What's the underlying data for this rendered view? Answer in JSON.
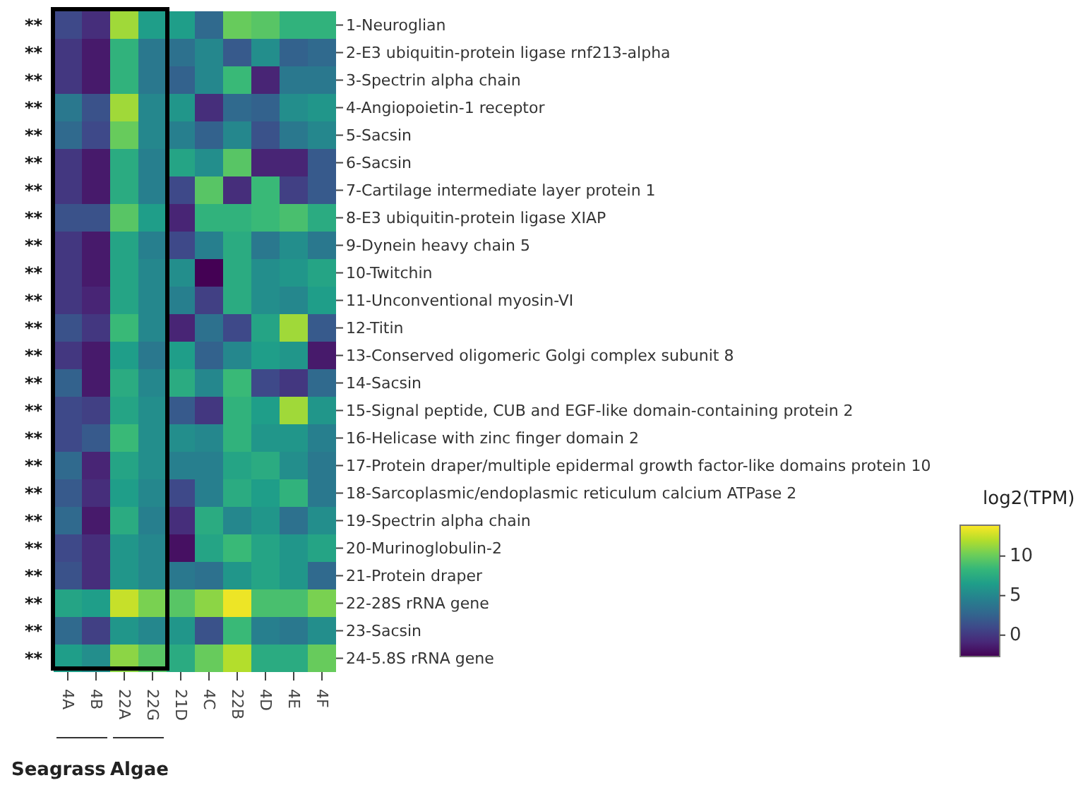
{
  "chart_data": {
    "type": "heatmap",
    "categories": [
      "4A",
      "4B",
      "22A",
      "22G",
      "21D",
      "4C",
      "22B",
      "4D",
      "4E",
      "4F"
    ],
    "y_categories": [
      "1-Neuroglian",
      "2-E3 ubiquitin-protein ligase rnf213-alpha",
      "3-Spectrin alpha chain",
      "4-Angiopoietin-1 receptor",
      "5-Sacsin",
      "6-Sacsin",
      "7-Cartilage intermediate layer protein 1",
      "8-E3 ubiquitin-protein ligase XIAP",
      "9-Dynein heavy chain 5",
      "10-Twitchin",
      "11-Unconventional myosin-VI",
      "12-Titin",
      "13-Conserved oligomeric Golgi complex subunit 8",
      "14-Sacsin",
      "15-Signal peptide, CUB and EGF-like domain-containing protein 2",
      "16-Helicase with zinc finger domain 2",
      "17-Protein draper/multiple epidermal growth factor-like domains protein 10",
      "18-Sarcoplasmic/endoplasmic reticulum calcium ATPase 2",
      "19-Spectrin alpha chain",
      "20-Murinoglobulin-2",
      "21-Protein draper",
      "22-28S rRNA gene",
      "23-Sacsin",
      "24-5.8S rRNA gene"
    ],
    "y2_categories": [
      "**",
      "**",
      "**",
      "**",
      "**",
      "**",
      "**",
      "**",
      "**",
      "**",
      "**",
      "**",
      "**",
      "**",
      "**",
      "**",
      "**",
      "**",
      "**",
      "**",
      "**",
      "**",
      "**",
      "**"
    ],
    "cells": [
      [
        1,
        -0.5,
        11.5,
        6.5,
        6.5,
        3,
        10,
        9.5,
        8,
        8
      ],
      [
        0,
        -1.5,
        8,
        4,
        3.5,
        5,
        2,
        5.5,
        2.5,
        3
      ],
      [
        0,
        -1.5,
        8,
        4,
        2.5,
        5,
        8.5,
        -1,
        4,
        4
      ],
      [
        4,
        1.5,
        11.5,
        5,
        6,
        -0.5,
        3,
        2.5,
        5.5,
        6
      ],
      [
        3,
        1,
        10,
        5,
        4.5,
        2.5,
        5,
        1.5,
        4,
        5
      ],
      [
        0,
        -1.5,
        7.5,
        4.5,
        7,
        5.5,
        9.5,
        -1,
        -1,
        2
      ],
      [
        0,
        -1.5,
        7.5,
        4.5,
        1,
        9.5,
        -0.5,
        8.5,
        0.5,
        2
      ],
      [
        1.5,
        1.5,
        9.5,
        6.5,
        -1,
        8,
        8,
        8.5,
        9,
        7.5
      ],
      [
        0,
        -1.5,
        7,
        4.5,
        1,
        4.5,
        7.5,
        4,
        5.5,
        4
      ],
      [
        0,
        -1.5,
        7,
        5,
        5.5,
        -2.7,
        7.5,
        5.5,
        6,
        7
      ],
      [
        0,
        -1,
        7,
        5,
        4.5,
        0.5,
        7.5,
        5.5,
        5,
        6.5
      ],
      [
        1.5,
        0,
        8.5,
        5,
        -1,
        3.5,
        1,
        7,
        11.5,
        2
      ],
      [
        0,
        -1.5,
        6.5,
        4,
        6.5,
        2.5,
        5,
        6.5,
        6,
        -1.5
      ],
      [
        2.5,
        -1.5,
        7.5,
        5,
        7.5,
        5,
        8.5,
        1,
        0,
        3
      ],
      [
        1,
        0.5,
        7,
        5.5,
        2,
        0,
        8,
        6.5,
        11.5,
        6
      ],
      [
        1,
        2,
        8.5,
        5.5,
        5.5,
        5,
        8,
        6,
        6,
        4.5
      ],
      [
        3,
        -1,
        7,
        5.5,
        4.5,
        4.5,
        7,
        7.5,
        5.5,
        4
      ],
      [
        2,
        -0.5,
        6.5,
        5,
        1,
        4.5,
        7.5,
        6.5,
        8,
        4
      ],
      [
        3,
        -1.5,
        7.5,
        4.5,
        -0.5,
        7.5,
        5,
        6,
        3.5,
        5.5
      ],
      [
        1,
        -0.5,
        6,
        5,
        -2,
        7,
        8.5,
        7,
        6,
        7
      ],
      [
        1.5,
        -0.5,
        6,
        5,
        4,
        3.5,
        6,
        7,
        6,
        3
      ],
      [
        7,
        6.5,
        12.5,
        10.5,
        9.5,
        11,
        13.5,
        9,
        9,
        10.5
      ],
      [
        3,
        0.5,
        6,
        5,
        6,
        1.5,
        8.5,
        4.5,
        4,
        5.5
      ],
      [
        6.5,
        5.5,
        11,
        9.5,
        7.5,
        10,
        12,
        7.5,
        7.5,
        10
      ]
    ],
    "clim": [
      -2.7,
      13.9
    ],
    "cticks": [
      0,
      5,
      10
    ],
    "clabel": "log2(TPM)",
    "annotations": [
      "Seagrass",
      "Algae"
    ]
  }
}
